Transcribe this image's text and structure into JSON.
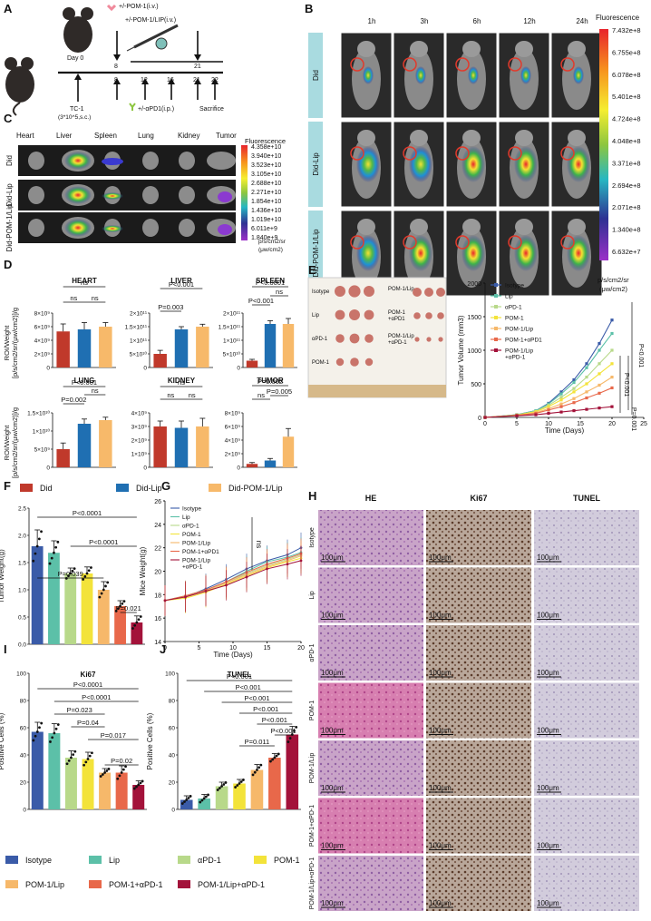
{
  "panel_labels": [
    "A",
    "B",
    "C",
    "D",
    "E",
    "F",
    "G",
    "H",
    "I",
    "J"
  ],
  "timeline": {
    "top_labels": [
      "+/-POM-1(i.v.)",
      "+/-POM-1/LIP(i.v.)"
    ],
    "day0": "Day 0",
    "top_days": [
      "8",
      "21"
    ],
    "bottom_days": [
      "8",
      "12",
      "16",
      "21",
      "22"
    ],
    "tc1": "TC-1",
    "tc1_sub": "(3*10^5,s.c.)",
    "apd1": "+/-αPD1(i.p.)",
    "sacrifice": "Sacrifice"
  },
  "imaging_B": {
    "times": [
      "1h",
      "3h",
      "6h",
      "12h",
      "24h"
    ],
    "rows": [
      "Did",
      "Did-Lip",
      "Did-POM-1/Lip"
    ],
    "scale_title": "Fluorescence",
    "scale_ticks": [
      "7.432e+8",
      "6.755e+8",
      "6.078e+8",
      "5.401e+8",
      "4.724e+8",
      "4.048e+8",
      "3.371e+8",
      "2.694e+8",
      "2.071e+8",
      "1.340e+8",
      "6.632e+7"
    ],
    "unit_lines": [
      "p/s/cm2/sr",
      "(μw/cm2)"
    ]
  },
  "organs_C": {
    "organs": [
      "Heart",
      "Liver",
      "Spleen",
      "Lung",
      "Kidney",
      "Tumor"
    ],
    "rows": [
      "Did",
      "Did-Lip",
      "Did-POM-1/Lip"
    ],
    "scale_title": "Fluorescence",
    "scale_ticks": [
      "4.358e+10",
      "3.940e+10",
      "3.523e+10",
      "3.105e+10",
      "2.688e+10",
      "2.271e+10",
      "1.854e+10",
      "1.436e+10",
      "1.019e+10",
      "6.011e+9",
      "1.840e+9"
    ],
    "unit_lines": [
      "p/s/cm2/sr",
      "(μw/cm2)"
    ]
  },
  "chart_data": [
    {
      "type": "bar",
      "panel": "D",
      "title": "HEART",
      "categories": [
        "Did",
        "Did-Lip",
        "Did-POM-1/Lip"
      ],
      "values": [
        5300000000.0,
        5600000000.0,
        6000000000.0
      ],
      "errors": [
        1100000000.0,
        1000000000.0,
        600000000.0
      ],
      "ylim": [
        0,
        8000000000.0
      ],
      "ticks": [
        "0",
        "2×10⁹",
        "4×10⁹",
        "6×10⁹",
        "8×10⁹"
      ],
      "annotations": [
        "ns",
        "ns",
        "ns"
      ]
    },
    {
      "type": "bar",
      "panel": "D",
      "title": "LIVER",
      "categories": [
        "Did",
        "Did-Lip",
        "Did-POM-1/Lip"
      ],
      "values": [
        50000000000.0,
        140000000000.0,
        150000000000.0
      ],
      "errors": [
        13000000000.0,
        10000000000.0,
        9000000000.0
      ],
      "ylim": [
        0,
        200000000000.0
      ],
      "ticks": [
        "0",
        "5×10¹⁰",
        "1×10¹¹",
        "1.5×10¹¹",
        "2×10¹¹"
      ],
      "annotations": [
        "P<0.001",
        "P=0.003"
      ]
    },
    {
      "type": "bar",
      "panel": "D",
      "title": "SPLEEN",
      "categories": [
        "Did",
        "Did-Lip",
        "Did-POM-1/Lip"
      ],
      "values": [
        25000000000.0,
        160000000000.0,
        160000000000.0
      ],
      "errors": [
        5000000000.0,
        12000000000.0,
        20000000000.0
      ],
      "ylim": [
        0,
        200000000000.0
      ],
      "ticks": [
        "0",
        "5×10¹⁰",
        "1×10¹¹",
        "1.5×10¹¹",
        "2×10¹¹"
      ],
      "annotations": [
        "P<0.0001",
        "P<0.001",
        "ns"
      ]
    },
    {
      "type": "bar",
      "panel": "D",
      "title": "LUNG",
      "categories": [
        "Did",
        "Did-Lip",
        "Did-POM-1/Lip"
      ],
      "values": [
        5000000000.0,
        12000000000.0,
        13000000000.0
      ],
      "errors": [
        1700000000.0,
        1300000000.0,
        800000000.0
      ],
      "ylim": [
        0,
        15000000000.0
      ],
      "ticks": [
        "0",
        "5×10⁹",
        "1×10¹⁰",
        "1.5×10¹⁰"
      ],
      "annotations": [
        "P<0.001",
        "P=0.002",
        "ns"
      ]
    },
    {
      "type": "bar",
      "panel": "D",
      "title": "KIDNEY",
      "categories": [
        "Did",
        "Did-Lip",
        "Did-POM-1/Lip"
      ],
      "values": [
        3000000000.0,
        2900000000.0,
        3000000000.0
      ],
      "errors": [
        400000000.0,
        500000000.0,
        600000000.0
      ],
      "ylim": [
        0,
        4000000000.0
      ],
      "ticks": [
        "0",
        "1×10⁹",
        "2×10⁹",
        "3×10⁹",
        "4×10⁹"
      ],
      "annotations": [
        "ns",
        "ns",
        "ns"
      ]
    },
    {
      "type": "bar",
      "panel": "D",
      "title": "TUMOR",
      "categories": [
        "Did",
        "Did-Lip",
        "Did-POM-1/Lip"
      ],
      "values": [
        500000000.0,
        1000000000.0,
        4500000000.0
      ],
      "errors": [
        200000000.0,
        300000000.0,
        1200000000.0
      ],
      "ylim": [
        0,
        8000000000.0
      ],
      "ticks": [
        "0",
        "2×10⁹",
        "4×10⁹",
        "6×10⁹",
        "8×10⁹"
      ],
      "annotations": [
        "P=0.002",
        "ns",
        "P=0.005"
      ]
    },
    {
      "type": "line",
      "panel": "E",
      "x": [
        0,
        5,
        8,
        10,
        12,
        14,
        16,
        18,
        20
      ],
      "xlabel": "Time (Days)",
      "ylabel": "Tumor Volume (mm3)",
      "xlim": [
        0,
        25
      ],
      "ylim": [
        0,
        2000
      ],
      "xticks": [
        "0",
        "5",
        "10",
        "15",
        "20",
        "25"
      ],
      "yticks": [
        "0",
        "500",
        "1000",
        "1500",
        "2000"
      ],
      "series": [
        {
          "name": "Isotype",
          "values": [
            0,
            40,
            100,
            210,
            380,
            560,
            800,
            1100,
            1450
          ]
        },
        {
          "name": "Lip",
          "values": [
            0,
            40,
            100,
            200,
            350,
            520,
            740,
            1000,
            1250
          ]
        },
        {
          "name": "αPD-1",
          "values": [
            0,
            35,
            90,
            180,
            300,
            430,
            600,
            800,
            1000
          ]
        },
        {
          "name": "POM-1",
          "values": [
            0,
            35,
            85,
            160,
            260,
            380,
            500,
            650,
            800
          ]
        },
        {
          "name": "POM-1/Lip",
          "values": [
            0,
            30,
            70,
            130,
            200,
            280,
            380,
            480,
            600
          ]
        },
        {
          "name": "POM-1+αPD1",
          "values": [
            0,
            30,
            60,
            110,
            160,
            220,
            290,
            360,
            440
          ]
        },
        {
          "name": "POM-1/Lip\n+αPD-1",
          "values": [
            0,
            25,
            40,
            60,
            80,
            100,
            120,
            140,
            160
          ]
        }
      ],
      "annotations": [
        "P<0.001",
        "P<0.001",
        "P=0.001"
      ]
    },
    {
      "type": "bar",
      "panel": "F",
      "ylabel": "Tumor Weight(g)",
      "categories": [
        "Isotype",
        "Lip",
        "αPD-1",
        "POM-1",
        "POM-1/Lip",
        "POM-1+αPD-1",
        "POM-1/Lip+αPD-1"
      ],
      "values": [
        1.8,
        1.68,
        1.3,
        1.3,
        1.0,
        0.7,
        0.4
      ],
      "errors": [
        0.3,
        0.22,
        0.1,
        0.12,
        0.15,
        0.1,
        0.12
      ],
      "ylim": [
        0,
        2.5
      ],
      "ticks": [
        "0.0",
        "0.5",
        "1.0",
        "1.5",
        "2.0",
        "2.5"
      ],
      "annotations": [
        "P<0.0001",
        "P<0.0001",
        "P=0.039",
        "P=0.021"
      ]
    },
    {
      "type": "line",
      "panel": "G",
      "x": [
        0,
        3,
        6,
        9,
        12,
        15,
        18,
        20
      ],
      "xlabel": "Time (Days)",
      "ylabel": "Mice Weight(g)",
      "xlim": [
        0,
        20
      ],
      "ylim": [
        14,
        26
      ],
      "xticks": [
        "0",
        "5",
        "10",
        "15",
        "20"
      ],
      "yticks": [
        "14",
        "16",
        "18",
        "20",
        "22",
        "24",
        "26"
      ],
      "series": [
        {
          "name": "Isotype",
          "values": [
            17.5,
            17.8,
            18.5,
            19.3,
            20.2,
            20.9,
            21.4,
            22.0
          ]
        },
        {
          "name": "Lip",
          "values": [
            17.5,
            17.9,
            18.4,
            19.1,
            20.0,
            20.8,
            21.2,
            21.6
          ]
        },
        {
          "name": "αPD-1",
          "values": [
            17.5,
            17.8,
            18.3,
            19.0,
            19.8,
            20.5,
            21.0,
            21.4
          ]
        },
        {
          "name": "POM-1",
          "values": [
            17.5,
            17.7,
            18.2,
            18.9,
            19.6,
            20.3,
            20.8,
            21.1
          ]
        },
        {
          "name": "POM-1/Lip",
          "values": [
            17.5,
            17.8,
            18.3,
            19.0,
            19.7,
            20.4,
            20.9,
            21.3
          ]
        },
        {
          "name": "POM-1+αPD1",
          "values": [
            17.5,
            17.9,
            18.4,
            19.1,
            19.9,
            20.6,
            21.1,
            21.5
          ]
        },
        {
          "name": "POM-1/Lip\n+αPD-1",
          "values": [
            17.5,
            17.8,
            18.3,
            18.8,
            19.5,
            20.2,
            20.6,
            20.9
          ]
        }
      ],
      "annotations": [
        "ns"
      ]
    },
    {
      "type": "bar",
      "panel": "I",
      "title": "Ki67",
      "ylabel": "Positive Cells (%)",
      "categories": [
        "Isotype",
        "Lip",
        "αPD-1",
        "POM-1",
        "POM-1/Lip",
        "POM-1+αPD-1",
        "POM-1/Lip+αPD-1"
      ],
      "values": [
        57,
        56,
        38,
        37,
        27,
        27,
        18
      ],
      "errors": [
        7,
        7,
        5,
        5,
        3,
        5,
        3
      ],
      "ylim": [
        0,
        100
      ],
      "ticks": [
        "0",
        "20",
        "40",
        "60",
        "80",
        "100"
      ],
      "annotations": [
        "P<0.0001",
        "P<0.0001",
        "P=0.023",
        "P=0.04",
        "P=0.017",
        "P=0.02"
      ]
    },
    {
      "type": "bar",
      "panel": "J",
      "title": "TUNEL",
      "ylabel": "Positive Cells (%)",
      "categories": [
        "Isotype",
        "Lip",
        "αPD-1",
        "POM-1",
        "POM-1/Lip",
        "POM-1+αPD-1",
        "POM-1/Lip+αPD-1"
      ],
      "values": [
        7,
        8,
        17,
        19,
        29,
        38,
        55
      ],
      "errors": [
        3,
        3,
        3,
        3,
        4,
        3,
        6
      ],
      "ylim": [
        0,
        100
      ],
      "ticks": [
        "0",
        "20",
        "40",
        "60",
        "80",
        "100"
      ],
      "annotations": [
        "P<0.001",
        "P<0.001",
        "P<0.001",
        "P<0.001",
        "P<0.001",
        "P<0.001",
        "P=0.011"
      ]
    }
  ],
  "legend_D": {
    "items": [
      "Did",
      "Did-Lip",
      "Did-POM-1/Lip"
    ],
    "colors": [
      "#c0392b",
      "#1f6fb2",
      "#f7b96a"
    ],
    "ylabel_lines": [
      "ROI/Weight",
      "[p/s/cm2/sr/(μw/cm2)]/g"
    ]
  },
  "treatment_legend": {
    "items": [
      "Isotype",
      "Lip",
      "αPD-1",
      "POM-1",
      "POM-1/Lip",
      "POM-1+αPD-1",
      "POM-1/Lip+αPD-1"
    ],
    "colors": [
      "#3a5ba8",
      "#5cc0a8",
      "#b8d98a",
      "#f3e33a",
      "#f6b86a",
      "#e8684a",
      "#a3123a"
    ]
  },
  "tumor_photo": {
    "left_labels": [
      "Isotype",
      "Lip",
      "αPD-1",
      "POM-1"
    ],
    "right_labels": [
      "POM-1/Lip",
      "POM-1\n+αPD1",
      "POM-1/Lip\n+αPD-1"
    ]
  },
  "histology_H": {
    "columns": [
      "HE",
      "Ki67",
      "TUNEL"
    ],
    "rows": [
      "Isotype",
      "Lip",
      "αPD-1",
      "POM-1",
      "POM-1/Lip",
      "POM-1+αPD-1",
      "POM-1/Lip+αPD-1"
    ],
    "scale": "100μm"
  }
}
